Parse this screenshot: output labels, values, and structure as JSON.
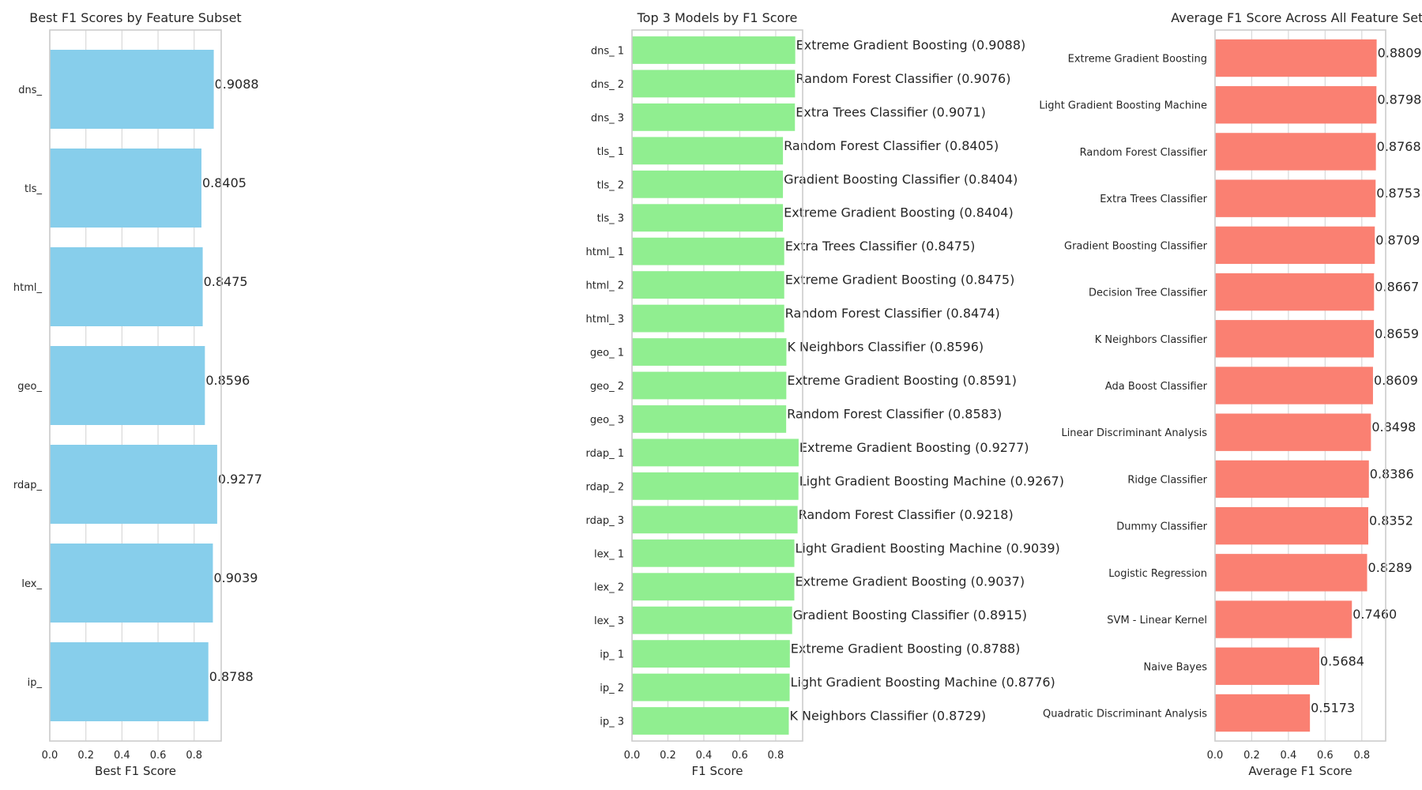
{
  "chart_data": [
    {
      "type": "bar",
      "orientation": "horizontal",
      "title": "Best F1 Scores by Feature Subset",
      "xlabel": "Best F1 Score",
      "xlim": [
        0,
        0.95
      ],
      "xticks": [
        "0.0",
        "0.2",
        "0.4",
        "0.6",
        "0.8"
      ],
      "grid": true,
      "color": "#87CEEB",
      "categories": [
        "dns_",
        "tls_",
        "html_",
        "geo_",
        "rdap_",
        "lex_",
        "ip_"
      ],
      "values": [
        0.9088,
        0.8405,
        0.8475,
        0.8596,
        0.9277,
        0.9039,
        0.8788
      ],
      "value_labels": [
        "0.9088",
        "0.8405",
        "0.8475",
        "0.8596",
        "0.9277",
        "0.9039",
        "0.8788"
      ]
    },
    {
      "type": "bar",
      "orientation": "horizontal",
      "title": "Top 3 Models by F1 Score",
      "xlabel": "F1 Score",
      "xlim": [
        0,
        0.95
      ],
      "xticks": [
        "0.0",
        "0.2",
        "0.4",
        "0.6",
        "0.8"
      ],
      "grid": true,
      "color": "#90EE90",
      "categories": [
        "dns_ 1",
        "dns_ 2",
        "dns_ 3",
        "tls_ 1",
        "tls_ 2",
        "tls_ 3",
        "html_ 1",
        "html_ 2",
        "html_ 3",
        "geo_ 1",
        "geo_ 2",
        "geo_ 3",
        "rdap_ 1",
        "rdap_ 2",
        "rdap_ 3",
        "lex_ 1",
        "lex_ 2",
        "lex_ 3",
        "ip_ 1",
        "ip_ 2",
        "ip_ 3"
      ],
      "values": [
        0.9088,
        0.9076,
        0.9071,
        0.8405,
        0.8404,
        0.8404,
        0.8475,
        0.8475,
        0.8474,
        0.8596,
        0.8591,
        0.8583,
        0.9277,
        0.9267,
        0.9218,
        0.9039,
        0.9037,
        0.8915,
        0.8788,
        0.8776,
        0.8729
      ],
      "value_labels": [
        "Extreme Gradient Boosting (0.9088)",
        "Random Forest Classifier (0.9076)",
        "Extra Trees Classifier (0.9071)",
        "Random Forest Classifier (0.8405)",
        "Gradient Boosting Classifier (0.8404)",
        "Extreme Gradient Boosting (0.8404)",
        "Extra Trees Classifier (0.8475)",
        "Extreme Gradient Boosting (0.8475)",
        "Random Forest Classifier (0.8474)",
        "K Neighbors Classifier (0.8596)",
        "Extreme Gradient Boosting (0.8591)",
        "Random Forest Classifier (0.8583)",
        "Extreme Gradient Boosting (0.9277)",
        "Light Gradient Boosting Machine (0.9267)",
        "Random Forest Classifier (0.9218)",
        "Light Gradient Boosting Machine (0.9039)",
        "Extreme Gradient Boosting (0.9037)",
        "Gradient Boosting Classifier (0.8915)",
        "Extreme Gradient Boosting (0.8788)",
        "Light Gradient Boosting Machine (0.8776)",
        "K Neighbors Classifier (0.8729)"
      ]
    },
    {
      "type": "bar",
      "orientation": "horizontal",
      "title": "Average F1 Score Across All Feature Sets",
      "xlabel": "Average F1 Score",
      "xlim": [
        0,
        0.93
      ],
      "xticks": [
        "0.0",
        "0.2",
        "0.4",
        "0.6",
        "0.8"
      ],
      "grid": true,
      "color": "#FA8072",
      "categories": [
        "Extreme Gradient Boosting",
        "Light Gradient Boosting Machine",
        "Random Forest Classifier",
        "Extra Trees Classifier",
        "Gradient Boosting Classifier",
        "Decision Tree Classifier",
        "K Neighbors Classifier",
        "Ada Boost Classifier",
        "Linear Discriminant Analysis",
        "Ridge Classifier",
        "Dummy Classifier",
        "Logistic Regression",
        "SVM - Linear Kernel",
        "Naive Bayes",
        "Quadratic Discriminant Analysis"
      ],
      "values": [
        0.8809,
        0.8798,
        0.8768,
        0.8753,
        0.8709,
        0.8667,
        0.8659,
        0.8609,
        0.8498,
        0.8386,
        0.8352,
        0.8289,
        0.746,
        0.5684,
        0.5173
      ],
      "value_labels": [
        "0.8809",
        "0.8798",
        "0.8768",
        "0.8753",
        "0.8709",
        "0.8667",
        "0.8659",
        "0.8609",
        "0.8498",
        "0.8386",
        "0.8352",
        "0.8289",
        "0.7460",
        "0.5684",
        "0.5173"
      ]
    }
  ]
}
